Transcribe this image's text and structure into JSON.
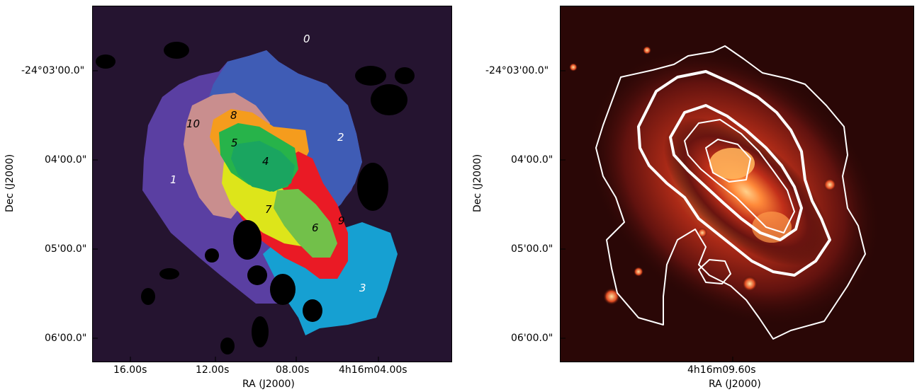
{
  "left_panel": {
    "xlabel": "RA (J2000)",
    "ylabel": "Dec (J2000)",
    "x_ticks": [
      "16.00s",
      "12.00s",
      "08.00s",
      "4h16m04.00s"
    ],
    "y_ticks": [
      "-24°03'00.0\"",
      "04'00.0\"",
      "05'00.0\"",
      "06'00.0\""
    ],
    "regions": [
      "0",
      "1",
      "2",
      "3",
      "4",
      "5",
      "6",
      "7",
      "8",
      "9",
      "10"
    ],
    "colors": {
      "background": "#251430",
      "r1": "#5a3fa2",
      "r2": "#3f5cb5",
      "r3": "#16a0d2",
      "r10": "#c98e8e",
      "r8": "#f59c1d",
      "r5": "#27b34a",
      "r4": "#1aa560",
      "r7": "#dde51a",
      "r6": "#72c04a",
      "r9": "#ea1a25",
      "mask": "#000000"
    }
  },
  "right_panel": {
    "xlabel": "RA (J2000)",
    "ylabel": "Dec (J2000)",
    "x_ticks": [
      "4h16m09.60s"
    ],
    "y_ticks": [
      "-24°03'00.0\"",
      "04'00.0\"",
      "05'00.0\"",
      "06'00.0\""
    ],
    "colors": {
      "background": "#2a0706",
      "glow": "#ff7a2a",
      "contour": "#ffffff"
    }
  }
}
